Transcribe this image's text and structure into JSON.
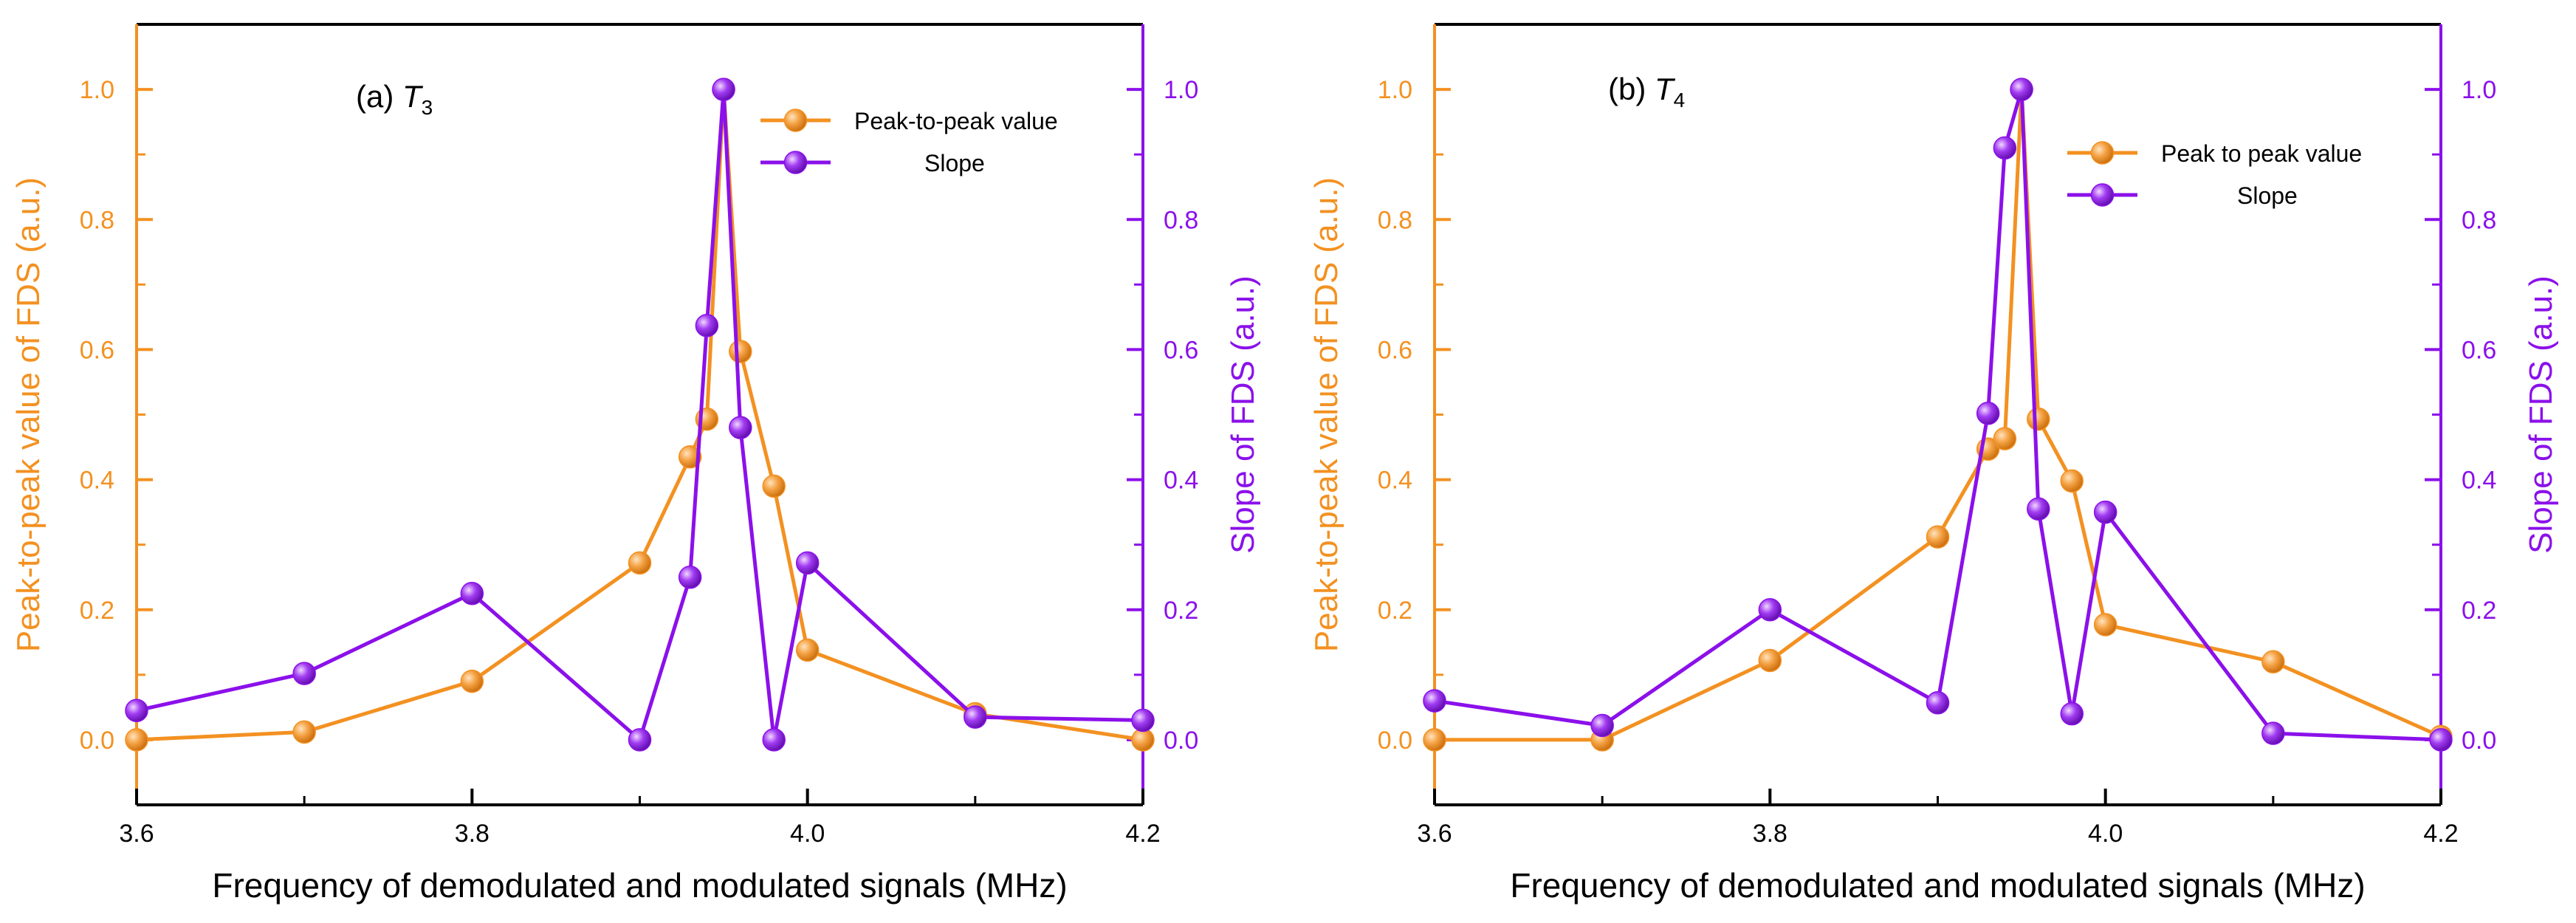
{
  "colors": {
    "peak": "#F39121",
    "slope": "#8B10EA",
    "axis": "#000000",
    "text": "#000000"
  },
  "chart_data": [
    {
      "type": "line",
      "panel_label": "(a) ",
      "panel_var": "T",
      "panel_sub": "3",
      "xlabel": "Frequency of demodulated and modulated signals (MHz)",
      "ylabel_left": "Peak-to-peak value of FDS (a.u.)",
      "ylabel_right": "Slope of FDS (a.u.)",
      "xlim": [
        3.6,
        4.2
      ],
      "ylim": [
        -0.1,
        1.1
      ],
      "grid": false,
      "legend_position": "top-right",
      "x_ticks": [
        "3.6",
        "3.8",
        "4.0",
        "4.2"
      ],
      "y_ticks": [
        "0.0",
        "0.2",
        "0.4",
        "0.6",
        "0.8",
        "1.0"
      ],
      "series": [
        {
          "name": "Peak-to-peak value",
          "axis": "left",
          "x": [
            3.6,
            3.7,
            3.8,
            3.9,
            3.93,
            3.94,
            3.95,
            3.96,
            3.98,
            4.0,
            4.1,
            4.2
          ],
          "y": [
            0.0,
            0.012,
            0.09,
            0.272,
            0.435,
            0.493,
            1.0,
            0.597,
            0.39,
            0.138,
            0.04,
            0.0
          ]
        },
        {
          "name": "Slope",
          "axis": "right",
          "x": [
            3.6,
            3.7,
            3.8,
            3.9,
            3.93,
            3.94,
            3.95,
            3.96,
            3.98,
            4.0,
            4.1,
            4.2
          ],
          "y": [
            0.045,
            0.102,
            0.225,
            0.0,
            0.25,
            0.637,
            1.0,
            0.48,
            0.0,
            0.272,
            0.035,
            0.03
          ]
        }
      ]
    },
    {
      "type": "line",
      "panel_label": "(b) ",
      "panel_var": "T",
      "panel_sub": "4",
      "xlabel": "Frequency of demodulated and modulated signals (MHz)",
      "ylabel_left": "Peak-to-peak value of FDS (a.u.)",
      "ylabel_right": "Slope of FDS (a.u.)",
      "xlim": [
        3.6,
        4.2
      ],
      "ylim": [
        -0.1,
        1.1
      ],
      "grid": false,
      "legend_position": "top-right",
      "x_ticks": [
        "3.6",
        "3.8",
        "4.0",
        "4.2"
      ],
      "y_ticks": [
        "0.0",
        "0.2",
        "0.4",
        "0.6",
        "0.8",
        "1.0"
      ],
      "series": [
        {
          "name": "Peak to peak value",
          "axis": "left",
          "x": [
            3.6,
            3.7,
            3.8,
            3.9,
            3.93,
            3.94,
            3.95,
            3.96,
            3.98,
            4.0,
            4.1,
            4.2
          ],
          "y": [
            0.0,
            0.0,
            0.122,
            0.312,
            0.447,
            0.463,
            1.0,
            0.493,
            0.398,
            0.177,
            0.12,
            0.005
          ]
        },
        {
          "name": "Slope",
          "axis": "right",
          "x": [
            3.6,
            3.7,
            3.8,
            3.9,
            3.93,
            3.94,
            3.95,
            3.96,
            3.98,
            4.0,
            4.1,
            4.2
          ],
          "y": [
            0.06,
            0.022,
            0.2,
            0.057,
            0.502,
            0.91,
            1.0,
            0.355,
            0.04,
            0.35,
            0.01,
            0.0
          ]
        }
      ]
    }
  ]
}
